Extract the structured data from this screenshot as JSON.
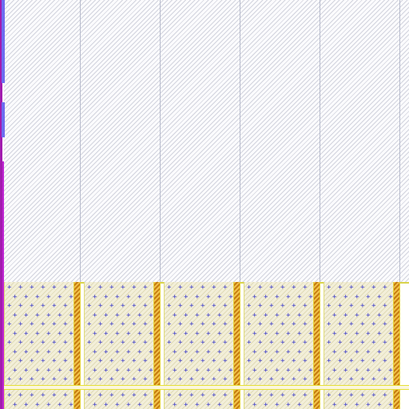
{
  "canvas": {
    "columns": 5,
    "empty_region_pattern": "diagonal-hatch",
    "grid_line_color": "#b8bccd"
  },
  "layout_row": {
    "cells": 5,
    "cell_fill_color": "#f3efd9",
    "cell_marker_glyph": "+",
    "marker_color": "#3a3acb",
    "rail_color": "#e2a020",
    "band_border_color": "#e5e038"
  },
  "left_rail": {
    "outer_color": "#a21caf",
    "inner_color": "#c026d3",
    "marker_color": "#6d6df0"
  }
}
